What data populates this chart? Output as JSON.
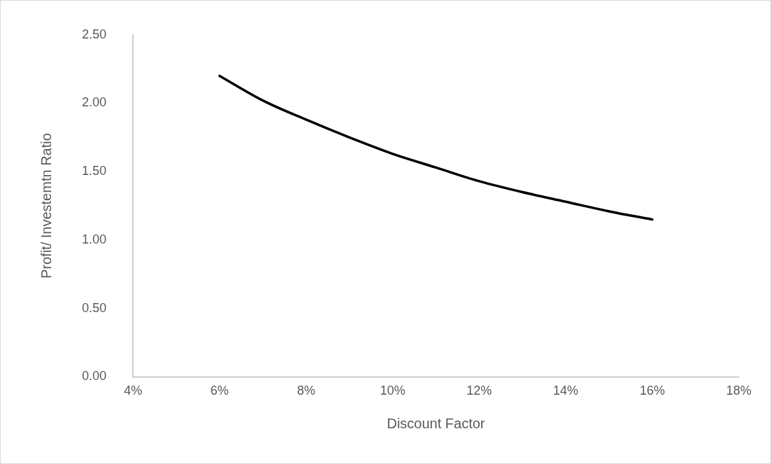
{
  "chart_data": {
    "type": "line",
    "xlabel": "Discount Factor",
    "ylabel": "Profit/ Investemtn Ratio",
    "x": [
      6,
      7,
      8,
      9,
      10,
      11,
      12,
      13,
      14,
      15,
      16
    ],
    "series": [
      {
        "color": "#000000",
        "values": [
          2.2,
          2.02,
          1.88,
          1.75,
          1.63,
          1.53,
          1.43,
          1.35,
          1.28,
          1.21,
          1.15
        ]
      }
    ],
    "xlim": [
      4,
      18
    ],
    "xticks": [
      {
        "value": 4,
        "label": "4%"
      },
      {
        "value": 6,
        "label": "6%"
      },
      {
        "value": 8,
        "label": "8%"
      },
      {
        "value": 10,
        "label": "10%"
      },
      {
        "value": 12,
        "label": "12%"
      },
      {
        "value": 14,
        "label": "14%"
      },
      {
        "value": 16,
        "label": "16%"
      },
      {
        "value": 18,
        "label": "18%"
      }
    ],
    "ylim": [
      0,
      2.5
    ],
    "yticks": [
      {
        "value": 0,
        "label": "0.00"
      },
      {
        "value": 0.5,
        "label": "0.50"
      },
      {
        "value": 1,
        "label": "1.00"
      },
      {
        "value": 1.5,
        "label": "1.50"
      },
      {
        "value": 2,
        "label": "2.00"
      },
      {
        "value": 2.5,
        "label": "2.50"
      }
    ],
    "grid": false,
    "legend": false,
    "marker": "none",
    "line_style": "solid"
  }
}
